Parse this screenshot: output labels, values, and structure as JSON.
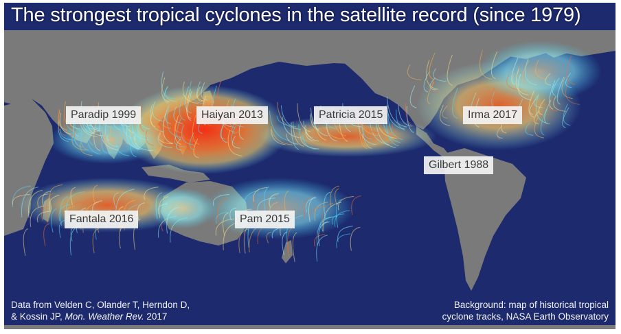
{
  "title": "The strongest tropical cyclones in the satellite record (since 1979)",
  "cyclones": [
    {
      "name": "Paradip 1999"
    },
    {
      "name": "Haiyan 2013"
    },
    {
      "name": "Patricia 2015"
    },
    {
      "name": "Irma 2017"
    },
    {
      "name": "Gilbert 1988"
    },
    {
      "name": "Fantala 2016"
    },
    {
      "name": "Pam 2015"
    }
  ],
  "credits": {
    "data_line1": "Data from Velden C, Olander T, Herndon D,",
    "data_line2_prefix": "& Kossin JP, ",
    "data_line2_journal": "Mon. Weather Rev.",
    "data_line2_suffix": " 2017",
    "background_line1": "Background: map of historical tropical",
    "background_line2": "cyclone tracks, NASA Earth Observatory"
  },
  "colors": {
    "ocean": "#1d2a6e",
    "land": "#7a7a7a",
    "track_low": "#7ff3ff",
    "track_mid": "#ffd66a",
    "track_high": "#ff3a12",
    "label_bg": "#f2f2f2"
  }
}
